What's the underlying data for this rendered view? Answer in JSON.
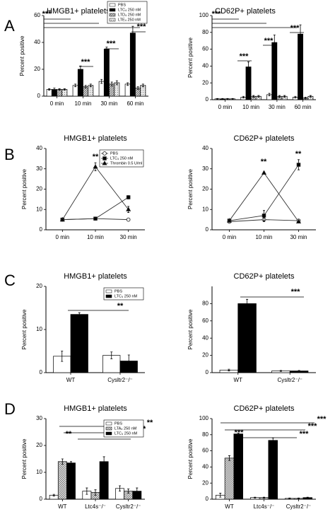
{
  "panel_labels": [
    "A",
    "B",
    "C",
    "D"
  ],
  "chart_data": [
    {
      "type": "bar",
      "title": "HMGB1+ platelets",
      "y_label": "Percent positive",
      "categories": [
        "0 min",
        "10 min",
        "30 min",
        "60 min"
      ],
      "series": [
        {
          "name": "PBS",
          "color": "#ffffff",
          "values": [
            5,
            8,
            11,
            9
          ],
          "errors": [
            0.5,
            1,
            1.5,
            1
          ]
        },
        {
          "name": "LTC₄ 250 nM",
          "color": "#000000",
          "values": [
            5,
            20,
            35,
            47
          ],
          "errors": [
            1,
            2.5,
            1.5,
            5
          ]
        },
        {
          "name": "LTD₄ 250 nM",
          "color": "#d0d0d0",
          "pattern": "hatch",
          "values": [
            5,
            7,
            9,
            6
          ],
          "errors": [
            0.5,
            1,
            1.5,
            1
          ]
        },
        {
          "name": "LTE₄ 250 nM",
          "color": "#e8e8e8",
          "pattern": "dots",
          "values": [
            5,
            8,
            10,
            8
          ],
          "errors": [
            0.5,
            1,
            1.5,
            1
          ]
        }
      ],
      "ylim": [
        0,
        60
      ],
      "yticks": [
        0,
        20,
        40,
        60
      ],
      "legend": "upper right",
      "annotations": [
        "***",
        "***",
        "***",
        "***"
      ]
    },
    {
      "type": "bar",
      "title": "CD62P+ platelets",
      "y_label": "Percent positive",
      "categories": [
        "0 min",
        "10 min",
        "30 min",
        "60 min"
      ],
      "series": [
        {
          "name": "PBS",
          "color": "#ffffff",
          "values": [
            1,
            3,
            6,
            3
          ],
          "errors": [
            0.5,
            1,
            1.5,
            1
          ]
        },
        {
          "name": "LTC₄ 250 nM",
          "color": "#000000",
          "values": [
            1,
            39,
            68,
            78
          ],
          "errors": [
            0.5,
            6,
            9,
            11
          ]
        },
        {
          "name": "LTD₄ 250 nM",
          "color": "#d0d0d0",
          "pattern": "hatch",
          "values": [
            1,
            4,
            4,
            2
          ],
          "errors": [
            0.5,
            1,
            1,
            1
          ]
        },
        {
          "name": "LTE₄ 250 nM",
          "color": "#e8e8e8",
          "pattern": "dots",
          "values": [
            1,
            4,
            4,
            4
          ],
          "errors": [
            0.5,
            1,
            1,
            1
          ]
        }
      ],
      "ylim": [
        0,
        100
      ],
      "yticks": [
        0,
        20,
        40,
        60,
        80,
        100
      ],
      "annotations": [
        "***",
        "***",
        "***",
        "***"
      ]
    },
    {
      "type": "line",
      "title": "HMGB1+ platelets",
      "y_label": "Percent positive",
      "categories": [
        "0 min",
        "10 min",
        "30 min"
      ],
      "series": [
        {
          "name": "PBS",
          "color": "#ffffff",
          "marker": "circle",
          "values": [
            5,
            5.5,
            5
          ],
          "errors": [
            0.5,
            0.5,
            0.5
          ]
        },
        {
          "name": "LTC₄ 250 nM",
          "color": "#000000",
          "marker": "square",
          "values": [
            5,
            5.5,
            16
          ],
          "errors": [
            0.5,
            0.5,
            0.8
          ]
        },
        {
          "name": "Thrombin 0.5 U/ml",
          "color": "#000000",
          "marker": "triangle",
          "values": [
            5,
            31,
            10
          ],
          "errors": [
            0.5,
            2,
            1.5
          ]
        }
      ],
      "ylim": [
        0,
        40
      ],
      "yticks": [
        0,
        10,
        20,
        30,
        40
      ],
      "legend": "upper right",
      "annotations": [
        "**"
      ]
    },
    {
      "type": "line",
      "title": "CD62P+ platelets",
      "y_label": "Percent positive",
      "categories": [
        "0 min",
        "10 min",
        "30 min"
      ],
      "series": [
        {
          "name": "PBS",
          "color": "#ffffff",
          "marker": "circle",
          "values": [
            4,
            5,
            4.5
          ],
          "errors": [
            0.5,
            1,
            0.5
          ]
        },
        {
          "name": "LTC₄ 250 nM",
          "color": "#000000",
          "marker": "square",
          "values": [
            4.5,
            7,
            32
          ],
          "errors": [
            0.5,
            2.5,
            2.5
          ]
        },
        {
          "name": "Thrombin 0.5 U/ml",
          "color": "#000000",
          "marker": "triangle",
          "values": [
            4.5,
            28,
            4
          ],
          "errors": [
            0.5,
            0.5,
            0.5
          ]
        }
      ],
      "ylim": [
        0,
        40
      ],
      "yticks": [
        0,
        10,
        20,
        30,
        40
      ],
      "annotations": [
        "**",
        "**"
      ]
    },
    {
      "type": "bar",
      "title": "HMGB1+ platelets",
      "y_label": "Percent positive",
      "categories": [
        "WT",
        "Cysltr2⁻/⁻"
      ],
      "series": [
        {
          "name": "PBS",
          "color": "#ffffff",
          "values": [
            3.8,
            4
          ],
          "errors": [
            1.2,
            0.8
          ]
        },
        {
          "name": "LTC₄ 250 nM",
          "color": "#000000",
          "values": [
            13.5,
            2.7
          ],
          "errors": [
            0.4,
            1.4
          ]
        }
      ],
      "ylim": [
        0,
        20
      ],
      "yticks": [
        0,
        10,
        20
      ],
      "legend": "upper right",
      "annotations": [
        "**"
      ]
    },
    {
      "type": "bar",
      "title": "CD62P+ platelets",
      "y_label": "Percent positive",
      "categories": [
        "WT",
        "Cysltr2⁻/⁻"
      ],
      "series": [
        {
          "name": "PBS",
          "color": "#ffffff",
          "values": [
            3,
            2
          ],
          "errors": [
            1,
            0.5
          ]
        },
        {
          "name": "LTC₄ 250 nM",
          "color": "#000000",
          "values": [
            80,
            2
          ],
          "errors": [
            5,
            0.5
          ]
        }
      ],
      "ylim": [
        0,
        100
      ],
      "yticks": [
        0,
        20,
        40,
        60,
        80
      ],
      "annotations": [
        "***"
      ]
    },
    {
      "type": "bar",
      "title": "HMGB1+ platelets",
      "y_label": "Percent positive",
      "categories": [
        "WT",
        "Ltc4s⁻/⁻",
        "Cysltr2⁻/⁻"
      ],
      "series": [
        {
          "name": "PBS",
          "color": "#ffffff",
          "values": [
            1.5,
            3,
            4
          ],
          "errors": [
            0.3,
            1.2,
            1
          ]
        },
        {
          "name": "LTA₄ 250 nM",
          "color": "#d8d8d8",
          "pattern": "cross",
          "values": [
            14,
            2.5,
            3
          ],
          "errors": [
            1,
            1,
            0.8
          ]
        },
        {
          "name": "LTC₄ 250 nM",
          "color": "#000000",
          "values": [
            13.5,
            14,
            3
          ],
          "errors": [
            0.5,
            1.8,
            1.2
          ]
        }
      ],
      "ylim": [
        0,
        30
      ],
      "yticks": [
        0,
        10,
        20,
        30
      ],
      "legend": "upper right",
      "annotations": [
        "**",
        "**",
        "**",
        "**"
      ]
    },
    {
      "type": "bar",
      "title": "CD62P+ platelets",
      "y_label": "Percent positive",
      "categories": [
        "WT",
        "Ltc4s⁻/⁻",
        "Cysltr2⁻/⁻"
      ],
      "series": [
        {
          "name": "PBS",
          "color": "#ffffff",
          "values": [
            5,
            2,
            1
          ],
          "errors": [
            2.5,
            0.5,
            0.5
          ]
        },
        {
          "name": "LTA₄ 250 nM",
          "color": "#d8d8d8",
          "pattern": "cross",
          "values": [
            51,
            2,
            1
          ],
          "errors": [
            3,
            0.5,
            0.5
          ]
        },
        {
          "name": "LTC₄ 250 nM",
          "color": "#000000",
          "values": [
            81,
            73,
            2
          ],
          "errors": [
            1,
            3,
            0.5
          ]
        }
      ],
      "ylim": [
        0,
        100
      ],
      "yticks": [
        0,
        20,
        40,
        60,
        80,
        100
      ],
      "annotations": [
        "***",
        "***",
        "***",
        "***"
      ]
    }
  ]
}
